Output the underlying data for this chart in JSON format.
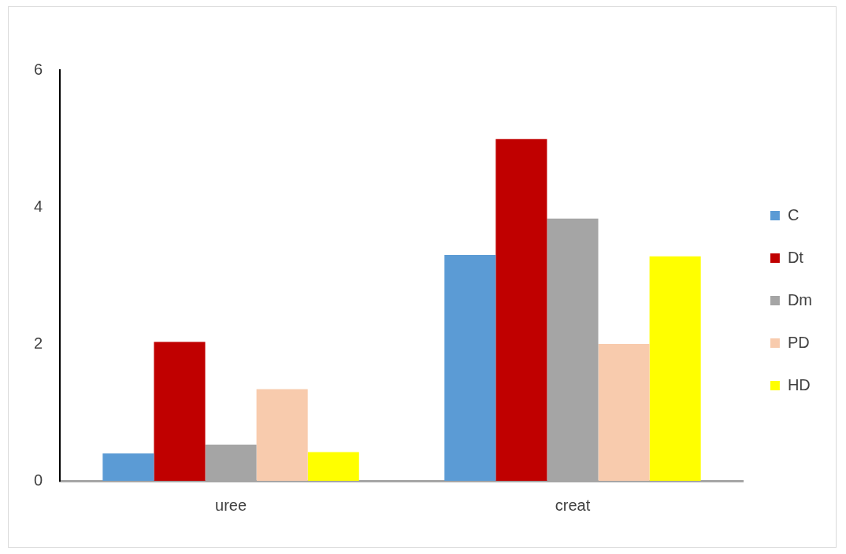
{
  "chart_data": {
    "type": "bar",
    "categories": [
      "uree",
      "creat"
    ],
    "series": [
      {
        "name": "C",
        "color": "#5b9bd5",
        "values": [
          0.4,
          3.3
        ]
      },
      {
        "name": "Dt",
        "color": "#c00000",
        "values": [
          2.03,
          4.99
        ]
      },
      {
        "name": "Dm",
        "color": "#a5a5a5",
        "values": [
          0.53,
          3.83
        ]
      },
      {
        "name": "PD",
        "color": "#f8cbad",
        "values": [
          1.34,
          2.0
        ]
      },
      {
        "name": "HD",
        "color": "#ffff00",
        "values": [
          0.42,
          3.28
        ]
      }
    ],
    "ylim": [
      0,
      6
    ],
    "yticks": [
      0,
      2,
      4,
      6
    ],
    "grid": false,
    "legend": "right"
  }
}
